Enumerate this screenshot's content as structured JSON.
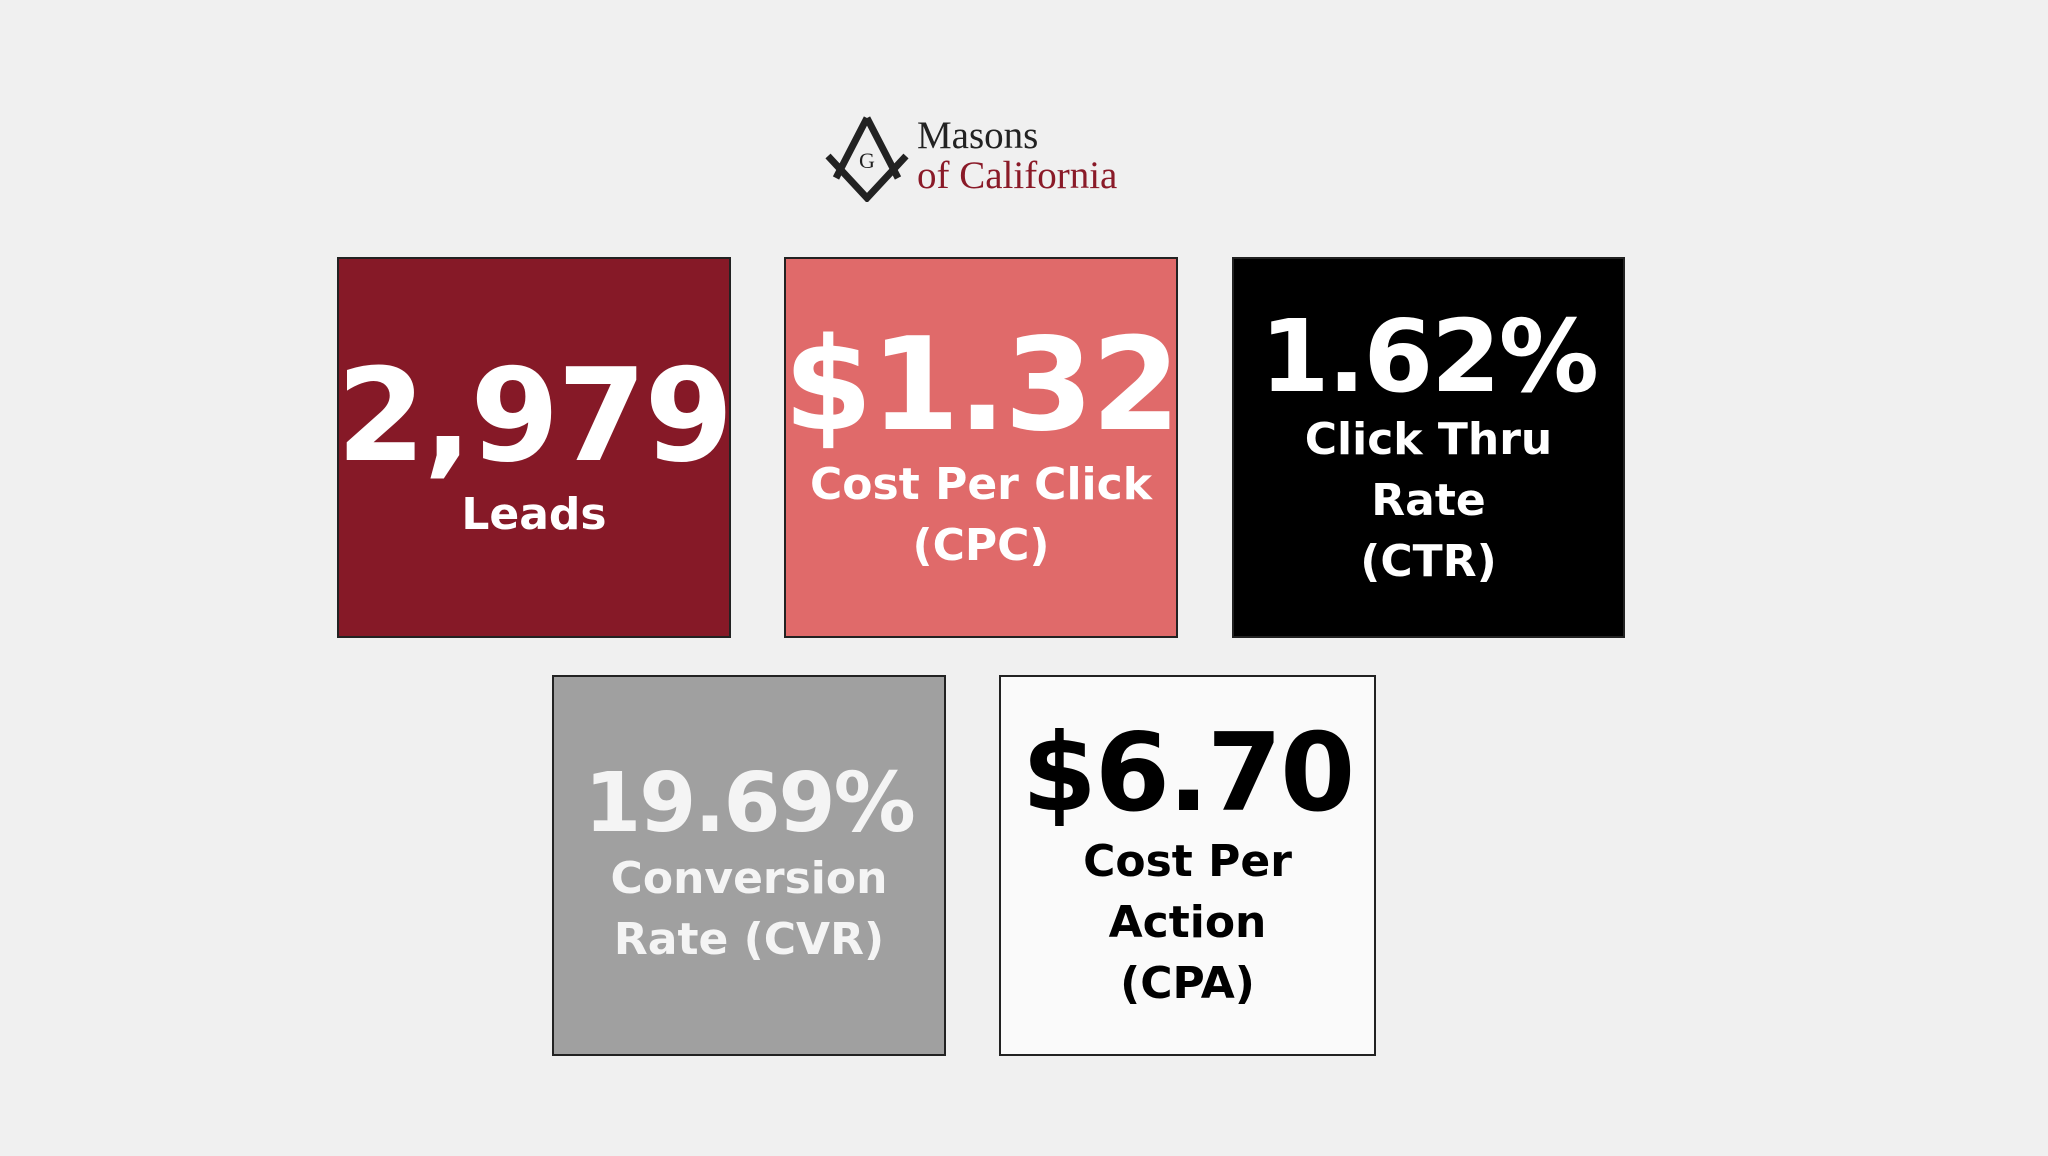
{
  "logo": {
    "emblem_letter": "G",
    "line1": "Masons",
    "line2": "of California"
  },
  "tiles": [
    {
      "value": "2,979",
      "label_lines": [
        "Leads"
      ]
    },
    {
      "value": "$1.32",
      "label_lines": [
        "Cost Per Click",
        "(CPC)"
      ]
    },
    {
      "value": "1.62%",
      "label_lines": [
        "Click Thru",
        "Rate",
        "(CTR)"
      ]
    },
    {
      "value": "19.69%",
      "label_lines": [
        "Conversion",
        "Rate (CVR)"
      ]
    },
    {
      "value": "$6.70",
      "label_lines": [
        "Cost Per",
        "Action",
        "(CPA)"
      ]
    }
  ]
}
